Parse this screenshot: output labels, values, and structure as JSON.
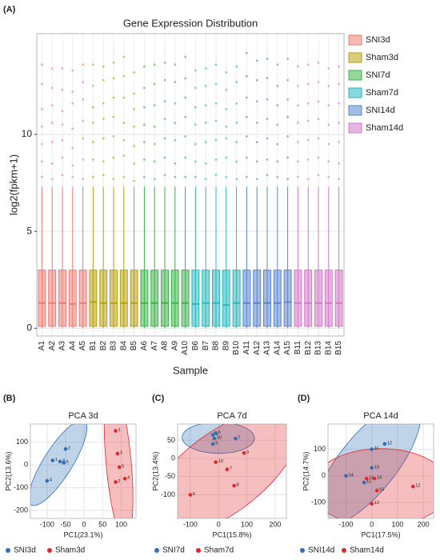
{
  "chart_data": [
    {
      "type": "box",
      "panel": "(A)",
      "title": "Gene Expression Distribution",
      "x_label": "Sample",
      "y_label": "log2(fpkm+1)",
      "ylim": [
        -0.4,
        15.2
      ],
      "yticks": [
        0,
        5,
        10
      ],
      "grid": true,
      "legend": "right",
      "series": [
        {
          "name": "SNI3d",
          "color": "#f07b72",
          "categories": [
            "A1",
            "A2",
            "A3",
            "A4",
            "A5"
          ],
          "whisker_low": [
            0,
            0,
            0,
            0,
            0
          ],
          "q1": [
            0.1,
            0.1,
            0.1,
            0.1,
            0.1
          ],
          "median": [
            1.3,
            1.3,
            1.3,
            1.25,
            1.3
          ],
          "q3": [
            3.0,
            3.0,
            3.0,
            3.0,
            3.0
          ],
          "whisker_high": [
            7.3,
            7.3,
            7.3,
            7.3,
            7.3
          ],
          "outliers": [
            [
              7.8,
              8.6,
              9.5,
              10.4,
              11.3,
              12.6,
              13.6
            ],
            [
              7.7,
              8.5,
              9.6,
              10.6,
              11.5,
              12.4,
              13.4
            ],
            [
              7.9,
              8.8,
              9.7,
              10.5,
              11.2,
              12.3,
              13.4
            ],
            [
              7.8,
              8.4,
              9.3,
              10.3,
              11.6,
              12.2,
              13.3
            ],
            [
              7.7,
              8.7,
              9.8,
              10.7,
              11.8,
              12.7,
              13.6
            ]
          ]
        },
        {
          "name": "Sham3d",
          "color": "#b8a010",
          "categories": [
            "B1",
            "B2",
            "B3",
            "B4",
            "B5"
          ],
          "whisker_low": [
            0,
            0,
            0,
            0,
            0
          ],
          "q1": [
            0.1,
            0.1,
            0.1,
            0.1,
            0.1
          ],
          "median": [
            1.35,
            1.3,
            1.3,
            1.3,
            1.3
          ],
          "q3": [
            3.0,
            3.0,
            3.0,
            3.0,
            3.0
          ],
          "whisker_high": [
            7.3,
            7.3,
            7.3,
            7.3,
            7.3
          ],
          "outliers": [
            [
              7.8,
              8.7,
              9.6,
              10.6,
              11.4,
              12.5,
              13.6
            ],
            [
              7.9,
              8.6,
              9.8,
              10.8,
              11.6,
              12.8,
              13.5
            ],
            [
              7.7,
              8.8,
              9.9,
              10.9,
              11.9,
              12.9,
              13.7
            ],
            [
              7.8,
              8.9,
              9.7,
              10.6,
              11.9,
              13.0,
              14.0
            ],
            [
              7.6,
              8.5,
              9.4,
              10.4,
              11.3,
              12.1,
              13.2
            ]
          ]
        },
        {
          "name": "SNI7d",
          "color": "#3cb44a",
          "categories": [
            "A6",
            "A7",
            "A8",
            "A9",
            "A10"
          ],
          "whisker_low": [
            0,
            0,
            0,
            0,
            0
          ],
          "q1": [
            0.1,
            0.1,
            0.1,
            0.1,
            0.1
          ],
          "median": [
            1.3,
            1.3,
            1.3,
            1.3,
            1.3
          ],
          "q3": [
            3.0,
            3.0,
            3.0,
            3.0,
            3.0
          ],
          "whisker_high": [
            7.3,
            7.3,
            7.3,
            7.3,
            7.3
          ],
          "outliers": [
            [
              7.8,
              8.7,
              9.6,
              10.5,
              11.4,
              12.4,
              13.5
            ],
            [
              7.7,
              8.6,
              9.5,
              10.4,
              11.5,
              12.6,
              13.6
            ],
            [
              7.9,
              8.8,
              9.8,
              10.8,
              11.7,
              12.8,
              13.7
            ],
            [
              7.8,
              8.5,
              9.7,
              10.6,
              11.6,
              12.7,
              13.6
            ],
            [
              7.8,
              8.8,
              9.9,
              10.9,
              11.9,
              12.9,
              14.0
            ]
          ]
        },
        {
          "name": "Sham7d",
          "color": "#27b8c0",
          "categories": [
            "B6",
            "B7",
            "B8",
            "B9",
            "B10"
          ],
          "whisker_low": [
            0,
            0,
            0,
            0,
            0
          ],
          "q1": [
            0.1,
            0.1,
            0.1,
            0.1,
            0.1
          ],
          "median": [
            1.25,
            1.3,
            1.3,
            1.2,
            1.3
          ],
          "q3": [
            3.0,
            3.0,
            3.0,
            3.0,
            3.0
          ],
          "whisker_high": [
            7.3,
            7.3,
            7.3,
            7.3,
            7.3
          ],
          "outliers": [
            [
              7.8,
              8.6,
              9.5,
              10.5,
              11.4,
              12.4,
              13.3
            ],
            [
              7.7,
              8.5,
              9.6,
              10.6,
              11.5,
              12.5,
              13.4
            ],
            [
              7.9,
              8.7,
              9.7,
              10.7,
              11.6,
              12.6,
              13.6
            ],
            [
              7.8,
              8.8,
              9.8,
              10.4,
              11.3,
              12.3,
              13.2
            ],
            [
              7.7,
              8.6,
              9.6,
              10.6,
              11.6,
              12.7,
              13.5
            ]
          ]
        },
        {
          "name": "SNI14d",
          "color": "#5a86cf",
          "categories": [
            "A11",
            "A12",
            "A13",
            "A14",
            "A15"
          ],
          "whisker_low": [
            0,
            0,
            0,
            0,
            0
          ],
          "q1": [
            0.1,
            0.1,
            0.1,
            0.1,
            0.1
          ],
          "median": [
            1.3,
            1.3,
            1.3,
            1.3,
            1.35
          ],
          "q3": [
            3.0,
            3.0,
            3.0,
            3.0,
            3.0
          ],
          "whisker_high": [
            7.3,
            7.3,
            7.3,
            7.3,
            7.3
          ],
          "outliers": [
            [
              7.8,
              8.8,
              9.9,
              10.9,
              11.9,
              13.0,
              14.2
            ],
            [
              7.7,
              8.6,
              9.6,
              10.6,
              11.7,
              12.8,
              13.8
            ],
            [
              7.9,
              8.7,
              9.8,
              10.8,
              11.8,
              12.9,
              13.9
            ],
            [
              7.8,
              8.6,
              9.5,
              10.5,
              11.5,
              12.5,
              13.6
            ],
            [
              7.7,
              8.8,
              9.9,
              10.9,
              11.8,
              12.8,
              13.9
            ]
          ]
        },
        {
          "name": "Sham14d",
          "color": "#d27ac8",
          "categories": [
            "B11",
            "B12",
            "B13",
            "B14",
            "B15"
          ],
          "whisker_low": [
            0,
            0,
            0,
            0,
            0
          ],
          "q1": [
            0.1,
            0.1,
            0.1,
            0.1,
            0.1
          ],
          "median": [
            1.3,
            1.3,
            1.3,
            1.3,
            1.3
          ],
          "q3": [
            3.0,
            3.0,
            3.0,
            3.0,
            3.0
          ],
          "whisker_high": [
            7.3,
            7.3,
            7.3,
            7.3,
            7.3
          ],
          "outliers": [
            [
              7.8,
              8.6,
              9.6,
              10.6,
              11.5,
              12.5,
              13.5
            ],
            [
              7.7,
              8.7,
              9.7,
              10.7,
              11.6,
              12.6,
              13.6
            ],
            [
              7.9,
              8.8,
              9.8,
              10.8,
              11.7,
              12.7,
              13.7
            ],
            [
              7.8,
              8.6,
              9.5,
              10.5,
              11.5,
              12.5,
              13.4
            ],
            [
              7.7,
              8.5,
              9.6,
              10.6,
              11.6,
              12.6,
              13.5
            ]
          ]
        }
      ]
    },
    {
      "type": "scatter",
      "panel": "(B)",
      "title": "PCA 3d",
      "x_label": "PC1(23.1%)",
      "y_label": "PC2(13.6%)",
      "xlim": [
        -145,
        140
      ],
      "ylim": [
        -235,
        180
      ],
      "xticks": [
        -100,
        -50,
        0,
        50,
        100
      ],
      "yticks": [
        -200,
        -100,
        0,
        100
      ],
      "grid": true,
      "legend": "bottom",
      "series": [
        {
          "name": "SNI3d",
          "color": "#2f6fb5",
          "x": [
            -100,
            -85,
            -65,
            -55,
            -50
          ],
          "values": [
            -70,
            20,
            15,
            10,
            70
          ],
          "labels": [
            "4",
            "1",
            "3",
            "5",
            "2"
          ]
        },
        {
          "name": "Sham3d",
          "color": "#e0282c",
          "x": [
            85,
            90,
            95,
            85,
            110
          ],
          "values": [
            150,
            50,
            -10,
            -75,
            -60
          ],
          "labels": [
            "1",
            "3",
            "5",
            "2",
            "4"
          ]
        }
      ]
    },
    {
      "type": "scatter",
      "panel": "(C)",
      "title": "PCA 7d",
      "x_label": "PC1(15.8%)",
      "y_label": "PC2(13.4%)",
      "xlim": [
        -145,
        240
      ],
      "ylim": [
        -165,
        95
      ],
      "xticks": [
        -100,
        0,
        100,
        200
      ],
      "yticks": [
        -100,
        -50,
        0,
        50
      ],
      "grid": true,
      "legend": "bottom",
      "series": [
        {
          "name": "SNI7d",
          "color": "#2f6fb5",
          "x": [
            -20,
            -10,
            -15,
            -20,
            60
          ],
          "values": [
            65,
            70,
            55,
            40,
            55
          ],
          "labels": [
            "8",
            "6",
            "10",
            "9",
            "7"
          ]
        },
        {
          "name": "Sham7d",
          "color": "#e0282c",
          "x": [
            90,
            -10,
            30,
            55,
            -100
          ],
          "values": [
            15,
            -10,
            -30,
            -75,
            -100
          ],
          "labels": [
            "9",
            "10",
            "7",
            "8",
            "6"
          ]
        }
      ]
    },
    {
      "type": "scatter",
      "panel": "(D)",
      "title": "PCA 14d",
      "x_label": "PC1(17.5%)",
      "y_label": "PC2(14.7%)",
      "xlim": [
        -170,
        240
      ],
      "ylim": [
        -160,
        195
      ],
      "xticks": [
        -100,
        0,
        100,
        200
      ],
      "yticks": [
        -100,
        0,
        100
      ],
      "grid": true,
      "legend": "bottom",
      "series": [
        {
          "name": "SNI14d",
          "color": "#2f6fb5",
          "x": [
            -100,
            -30,
            0,
            50,
            0
          ],
          "values": [
            0,
            -25,
            100,
            120,
            30
          ],
          "labels": [
            "14",
            "15",
            "11",
            "12",
            "13"
          ]
        },
        {
          "name": "Sham14d",
          "color": "#e0282c",
          "x": [
            -20,
            10,
            20,
            0,
            160
          ],
          "values": [
            -10,
            -10,
            -55,
            -105,
            -40
          ],
          "labels": [
            "11",
            "14",
            "15",
            "13",
            "12"
          ]
        }
      ]
    }
  ]
}
